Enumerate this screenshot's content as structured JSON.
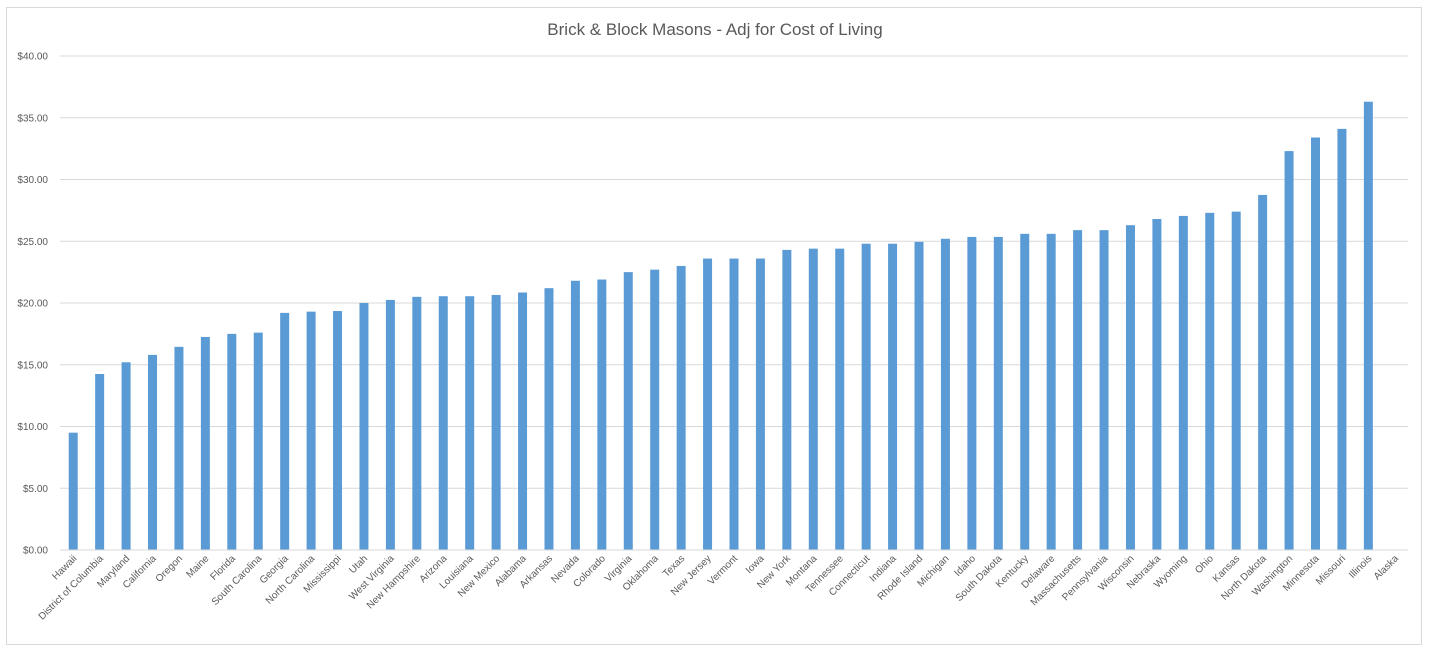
{
  "chart_data": {
    "type": "bar",
    "title": "Brick & Block Masons - Adj for Cost of Living",
    "xlabel": "",
    "ylabel": "",
    "ylim": [
      0,
      40
    ],
    "yticks": [
      "$0.00",
      "$5.00",
      "$10.00",
      "$15.00",
      "$20.00",
      "$25.00",
      "$30.00",
      "$35.00",
      "$40.00"
    ],
    "grid": true,
    "legend": "none",
    "bar_color": "#5b9bd5",
    "categories": [
      "Hawaii",
      "District of Columbia",
      "Maryland",
      "California",
      "Oregon",
      "Maine",
      "Florida",
      "South Carolina",
      "Georgia",
      "North Carolina",
      "Mississippi",
      "Utah",
      "West Virginia",
      "New Hampshire",
      "Arizona",
      "Louisiana",
      "New Mexico",
      "Alabama",
      "Arkansas",
      "Nevada",
      "Colorado",
      "Virginia",
      "Oklahoma",
      "Texas",
      "New Jersey",
      "Vermont",
      "Iowa",
      "New York",
      "Montana",
      "Tennessee",
      "Connecticut",
      "Indiana",
      "Rhode Island",
      "Michigan",
      "Idaho",
      "South Dakota",
      "Kentucky",
      "Delaware",
      "Massachusetts",
      "Pennsylvania",
      "Wisconsin",
      "Nebraska",
      "Wyoming",
      "Ohio",
      "Kansas",
      "North Dakota",
      "Washington",
      "Minnesota",
      "Missouri",
      "Illinois",
      "Alaska"
    ],
    "values": [
      9.5,
      14.25,
      15.2,
      15.8,
      16.45,
      17.25,
      17.5,
      17.6,
      19.2,
      19.3,
      19.35,
      20.0,
      20.25,
      20.5,
      20.55,
      20.55,
      20.65,
      20.85,
      21.2,
      21.8,
      21.9,
      22.5,
      22.7,
      23.0,
      23.6,
      23.6,
      23.6,
      24.3,
      24.4,
      24.4,
      24.8,
      24.8,
      24.95,
      25.2,
      25.35,
      25.35,
      25.6,
      25.6,
      25.9,
      25.9,
      26.3,
      26.8,
      27.05,
      27.3,
      27.4,
      28.75,
      32.3,
      33.4,
      34.1,
      36.3,
      0
    ]
  }
}
